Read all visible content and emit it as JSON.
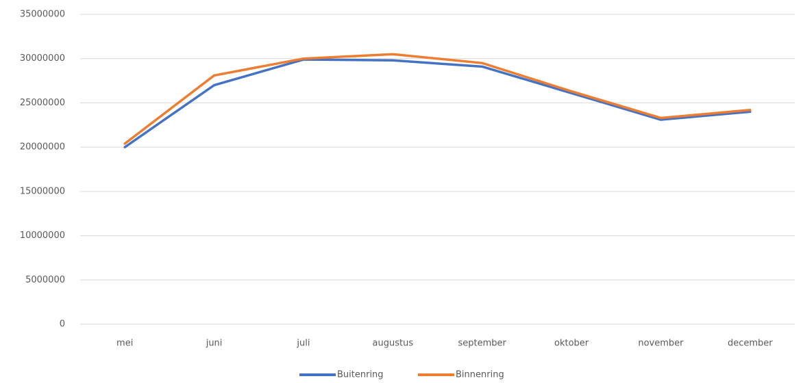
{
  "chart_data": {
    "type": "line",
    "categories": [
      "mei",
      "juni",
      "juli",
      "augustus",
      "september",
      "oktober",
      "november",
      "december"
    ],
    "series": [
      {
        "name": "Buitenring",
        "color": "#4472c4",
        "values": [
          20000000,
          27000000,
          29900000,
          29800000,
          29100000,
          26100000,
          23100000,
          24000000
        ]
      },
      {
        "name": "Binnenring",
        "color": "#ed7d31",
        "values": [
          20400000,
          28100000,
          30000000,
          30500000,
          29500000,
          26300000,
          23300000,
          24200000
        ]
      }
    ],
    "ylim": [
      0,
      35000000
    ],
    "yticks": [
      0,
      5000000,
      10000000,
      15000000,
      20000000,
      25000000,
      30000000,
      35000000
    ],
    "grid": true,
    "legend": "bottom"
  }
}
